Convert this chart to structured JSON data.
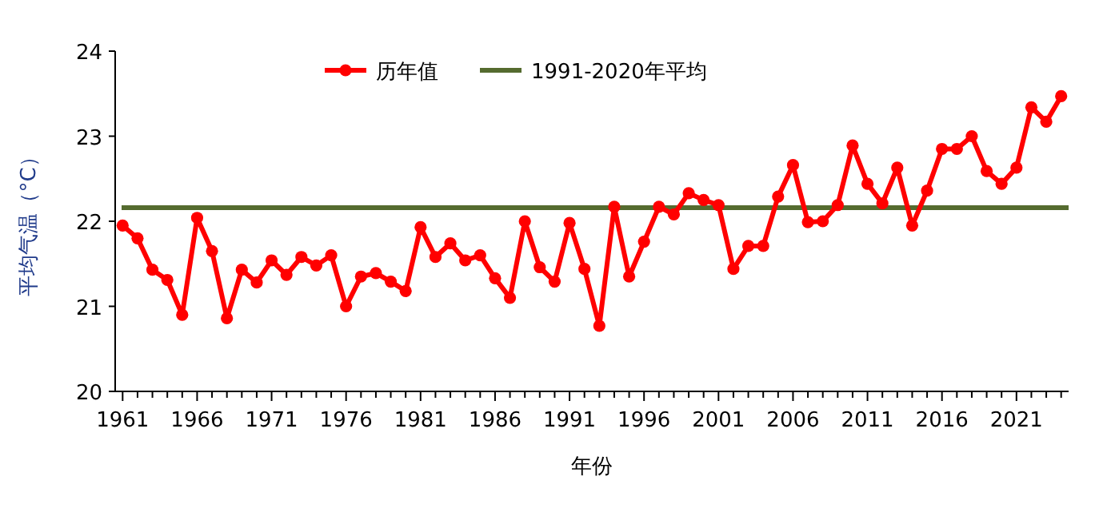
{
  "chart_data": {
    "type": "line",
    "ylabel": "平均气温（°C）",
    "xlabel": "年份",
    "x": [
      1961,
      1962,
      1963,
      1964,
      1965,
      1966,
      1967,
      1968,
      1969,
      1970,
      1971,
      1972,
      1973,
      1974,
      1975,
      1976,
      1977,
      1978,
      1979,
      1980,
      1981,
      1982,
      1983,
      1984,
      1985,
      1986,
      1987,
      1988,
      1989,
      1990,
      1991,
      1992,
      1993,
      1994,
      1995,
      1996,
      1997,
      1998,
      1999,
      2000,
      2001,
      2002,
      2003,
      2004,
      2005,
      2006,
      2007,
      2008,
      2009,
      2010,
      2011,
      2012,
      2013,
      2014,
      2015,
      2016,
      2017,
      2018,
      2019,
      2020,
      2021,
      2022,
      2023,
      2024
    ],
    "series": [
      {
        "name": "历年值",
        "color": "#ff0000",
        "values": [
          21.95,
          21.8,
          21.43,
          21.31,
          20.9,
          22.04,
          21.65,
          20.86,
          21.43,
          21.28,
          21.54,
          21.37,
          21.58,
          21.48,
          21.6,
          21.0,
          21.35,
          21.39,
          21.29,
          21.18,
          21.93,
          21.58,
          21.74,
          21.54,
          21.6,
          21.33,
          21.1,
          22.0,
          21.46,
          21.29,
          21.98,
          21.44,
          20.77,
          22.17,
          21.35,
          21.76,
          22.17,
          22.08,
          22.33,
          22.25,
          22.19,
          21.44,
          21.71,
          21.71,
          22.29,
          22.66,
          21.99,
          22.0,
          22.19,
          22.89,
          22.44,
          22.21,
          22.63,
          21.95,
          22.36,
          22.85,
          22.85,
          23.0,
          22.59,
          22.44,
          22.63,
          23.34,
          23.17,
          23.47
        ]
      }
    ],
    "ref_lines": [
      {
        "axis": "y",
        "value": 22.16,
        "label": "1991-2020年平均",
        "color": "#556b2f"
      }
    ],
    "xlim": [
      1960.5,
      2024.5
    ],
    "xticks": [
      1961,
      {
        "value": 1962,
        "label": null
      },
      {
        "value": 1963,
        "label": null
      },
      {
        "value": 1964,
        "label": null
      },
      {
        "value": 1965,
        "label": null
      },
      1966,
      {
        "value": 1967,
        "label": null
      },
      {
        "value": 1968,
        "label": null
      },
      {
        "value": 1969,
        "label": null
      },
      {
        "value": 1970,
        "label": null
      },
      1971,
      {
        "value": 1972,
        "label": null
      },
      {
        "value": 1973,
        "label": null
      },
      {
        "value": 1974,
        "label": null
      },
      {
        "value": 1975,
        "label": null
      },
      1976,
      {
        "value": 1977,
        "label": null
      },
      {
        "value": 1978,
        "label": null
      },
      {
        "value": 1979,
        "label": null
      },
      {
        "value": 1980,
        "label": null
      },
      1981,
      {
        "value": 1982,
        "label": null
      },
      {
        "value": 1983,
        "label": null
      },
      {
        "value": 1984,
        "label": null
      },
      {
        "value": 1985,
        "label": null
      },
      1986,
      {
        "value": 1987,
        "label": null
      },
      {
        "value": 1988,
        "label": null
      },
      {
        "value": 1989,
        "label": null
      },
      {
        "value": 1990,
        "label": null
      },
      1991,
      {
        "value": 1992,
        "label": null
      },
      {
        "value": 1993,
        "label": null
      },
      {
        "value": 1994,
        "label": null
      },
      {
        "value": 1995,
        "label": null
      },
      1996,
      {
        "value": 1997,
        "label": null
      },
      {
        "value": 1998,
        "label": null
      },
      {
        "value": 1999,
        "label": null
      },
      {
        "value": 2000,
        "label": null
      },
      2001,
      {
        "value": 2002,
        "label": null
      },
      {
        "value": 2003,
        "label": null
      },
      {
        "value": 2004,
        "label": null
      },
      {
        "value": 2005,
        "label": null
      },
      2006,
      {
        "value": 2007,
        "label": null
      },
      {
        "value": 2008,
        "label": null
      },
      {
        "value": 2009,
        "label": null
      },
      {
        "value": 2010,
        "label": null
      },
      2011,
      {
        "value": 2012,
        "label": null
      },
      {
        "value": 2013,
        "label": null
      },
      {
        "value": 2014,
        "label": null
      },
      {
        "value": 2015,
        "label": null
      },
      2016,
      {
        "value": 2017,
        "label": null
      },
      {
        "value": 2018,
        "label": null
      },
      {
        "value": 2019,
        "label": null
      },
      {
        "value": 2020,
        "label": null
      },
      2021,
      {
        "value": 2022,
        "label": null
      },
      {
        "value": 2023,
        "label": null
      },
      {
        "value": 2024,
        "label": null
      }
    ],
    "ylim": [
      20,
      24
    ],
    "yticks": [
      20,
      21,
      22,
      23,
      24
    ],
    "marker": "circle",
    "line_style": "solid",
    "grid": false,
    "legend": "top"
  }
}
